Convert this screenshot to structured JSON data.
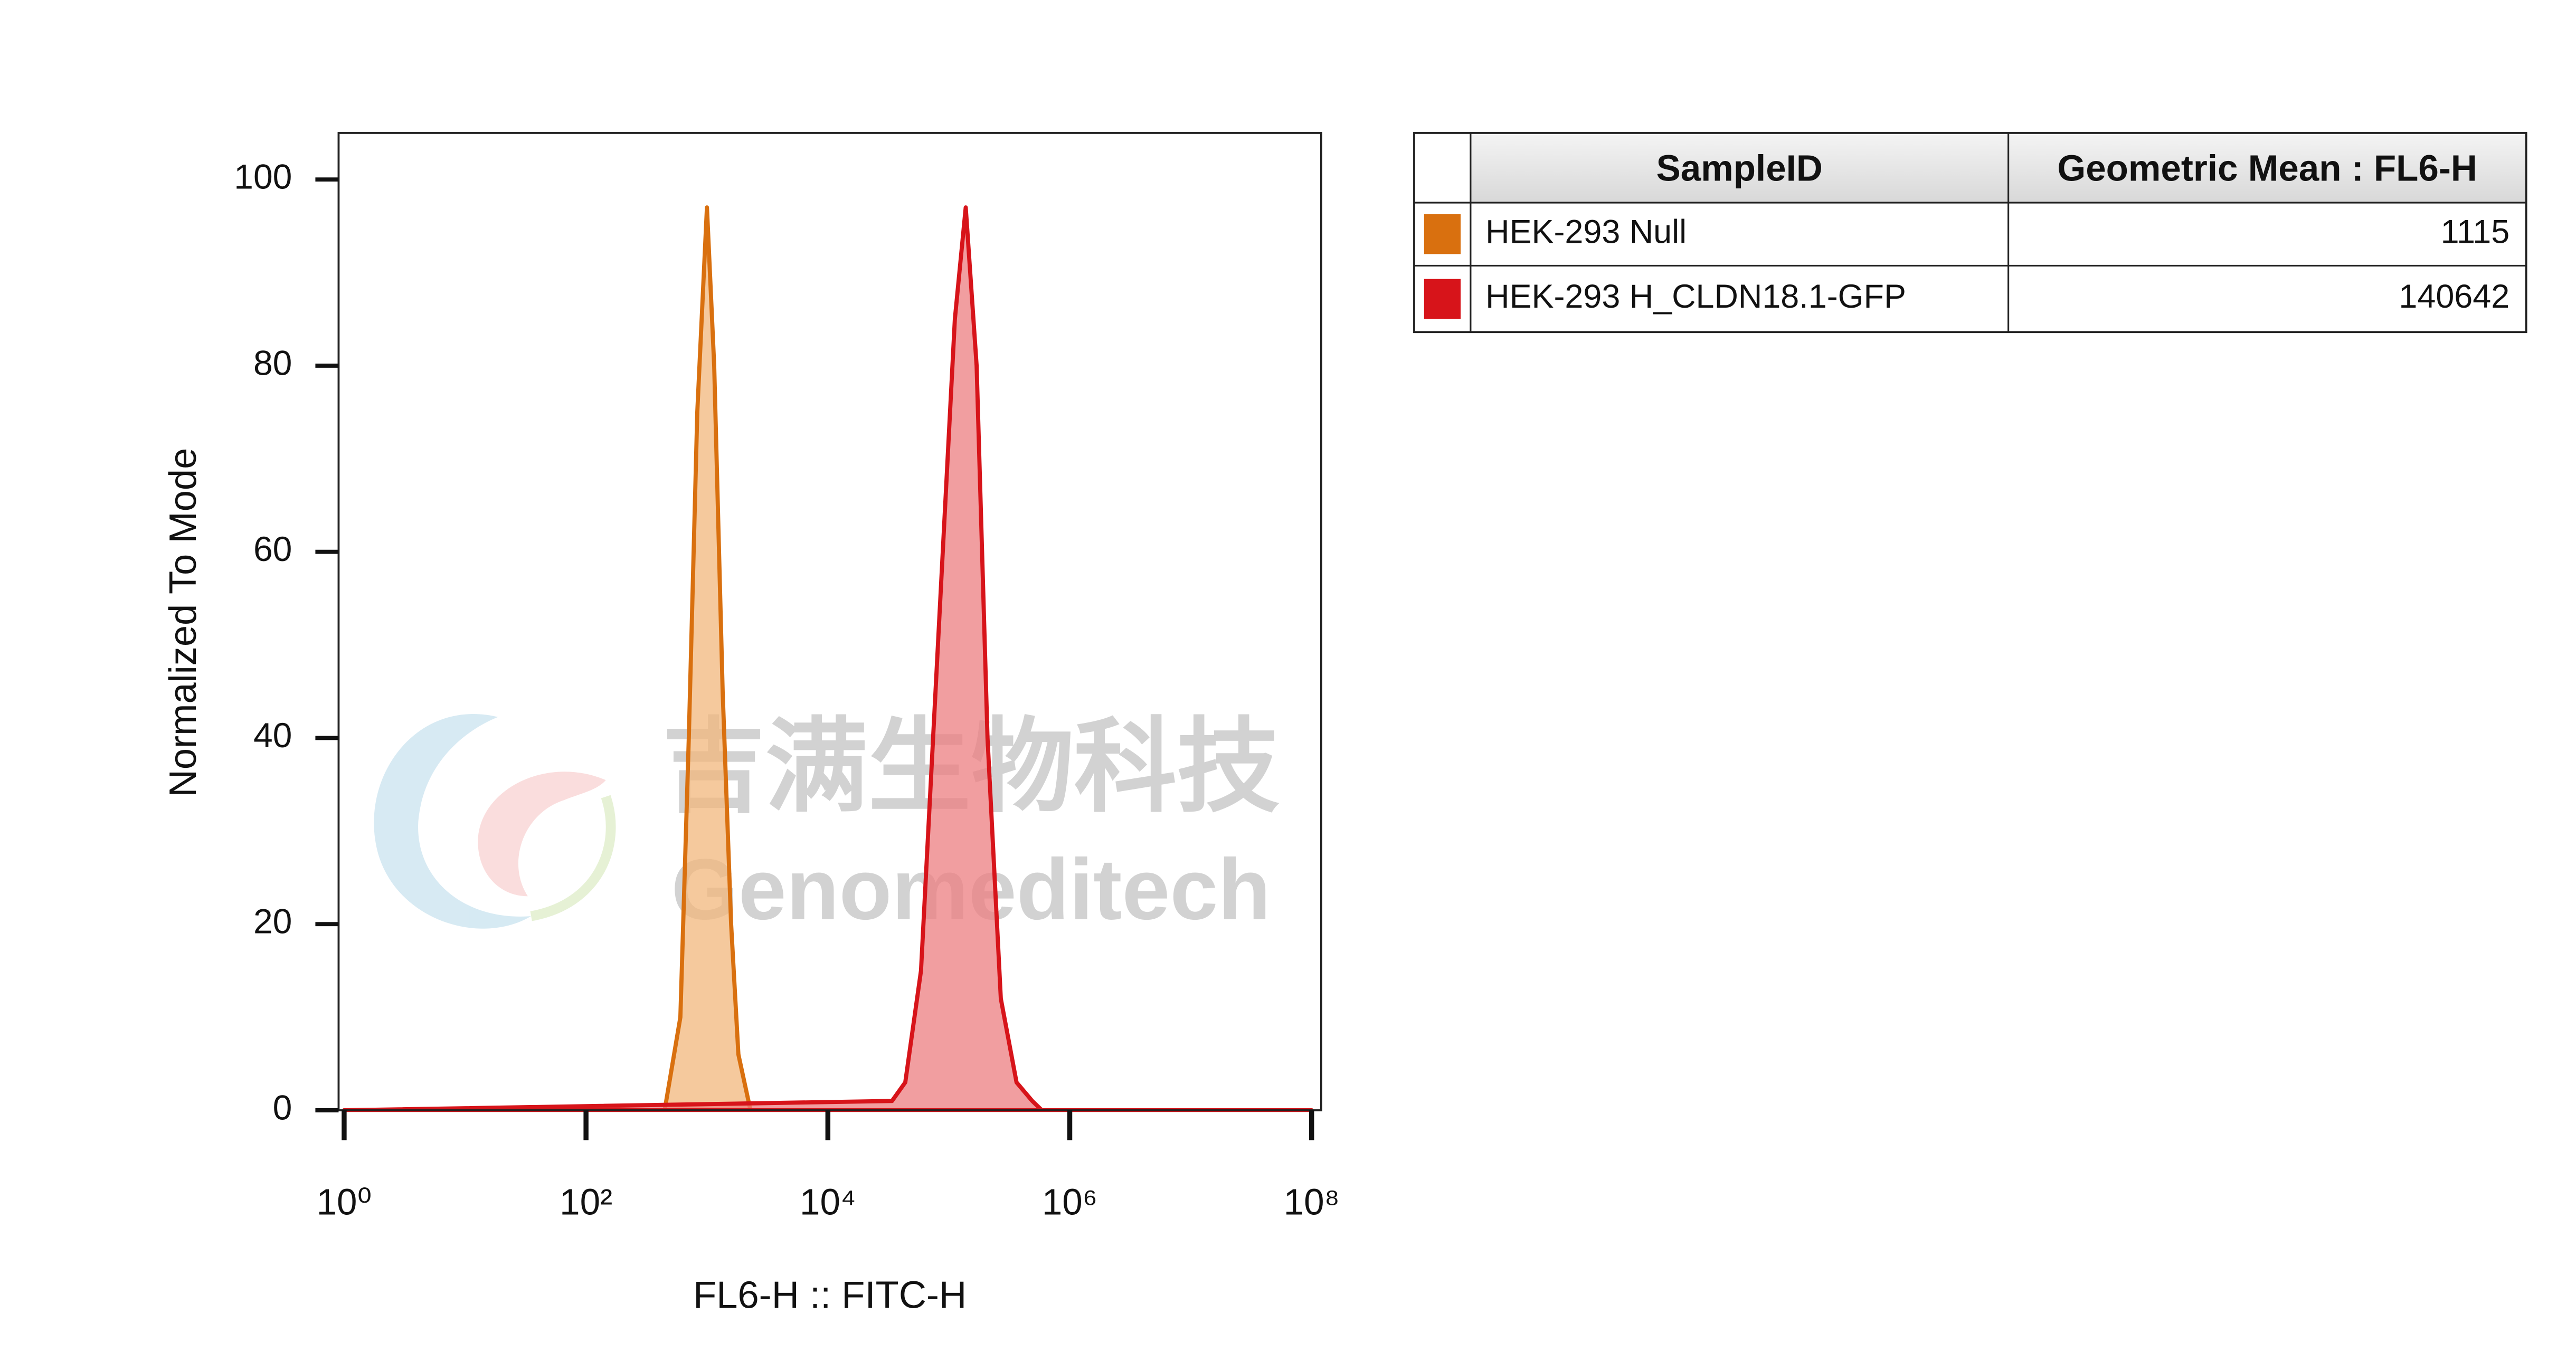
{
  "chart_data": {
    "type": "area",
    "x_label": "FL6-H :: FITC-H",
    "y_label": "Normalized To Mode",
    "xscale": "log",
    "xlim": [
      0.9,
      120000000
    ],
    "ylim": [
      0,
      105
    ],
    "xticks": [
      {
        "value": 1,
        "label": "10⁰"
      },
      {
        "value": 100,
        "label": "10²"
      },
      {
        "value": 10000,
        "label": "10⁴"
      },
      {
        "value": 1000000,
        "label": "10⁶"
      },
      {
        "value": 100000000,
        "label": "10⁸"
      }
    ],
    "yticks": [
      0,
      20,
      40,
      60,
      80,
      100
    ],
    "series": [
      {
        "name": "HEK-293 Null",
        "color": "#d9700f",
        "fill": "#f2b77c",
        "x": [
          1,
          447,
          603,
          708,
          832,
          1000,
          1148,
          1349,
          1585,
          1820,
          2291,
          100000000
        ],
        "values": [
          0,
          0,
          10,
          40,
          75,
          97,
          80,
          45,
          20,
          6,
          0,
          0
        ]
      },
      {
        "name": "HEK-293 H_CLDN18.1-GFP",
        "color": "#d7141a",
        "fill": "#ec7d80",
        "x": [
          1,
          33900,
          43650,
          58900,
          81280,
          112200,
          138000,
          169800,
          208900,
          269200,
          363100,
          489800,
          588800,
          100000000
        ],
        "values": [
          0,
          1,
          3,
          15,
          50,
          85,
          97,
          80,
          40,
          12,
          3,
          1,
          0,
          0
        ]
      }
    ],
    "legend_table": {
      "headers": [
        "SampleID",
        "Geometric Mean : FL6-H"
      ],
      "values": [
        1115,
        140642
      ]
    },
    "watermark": [
      "吉满生物科技",
      "Genomeditech"
    ]
  }
}
